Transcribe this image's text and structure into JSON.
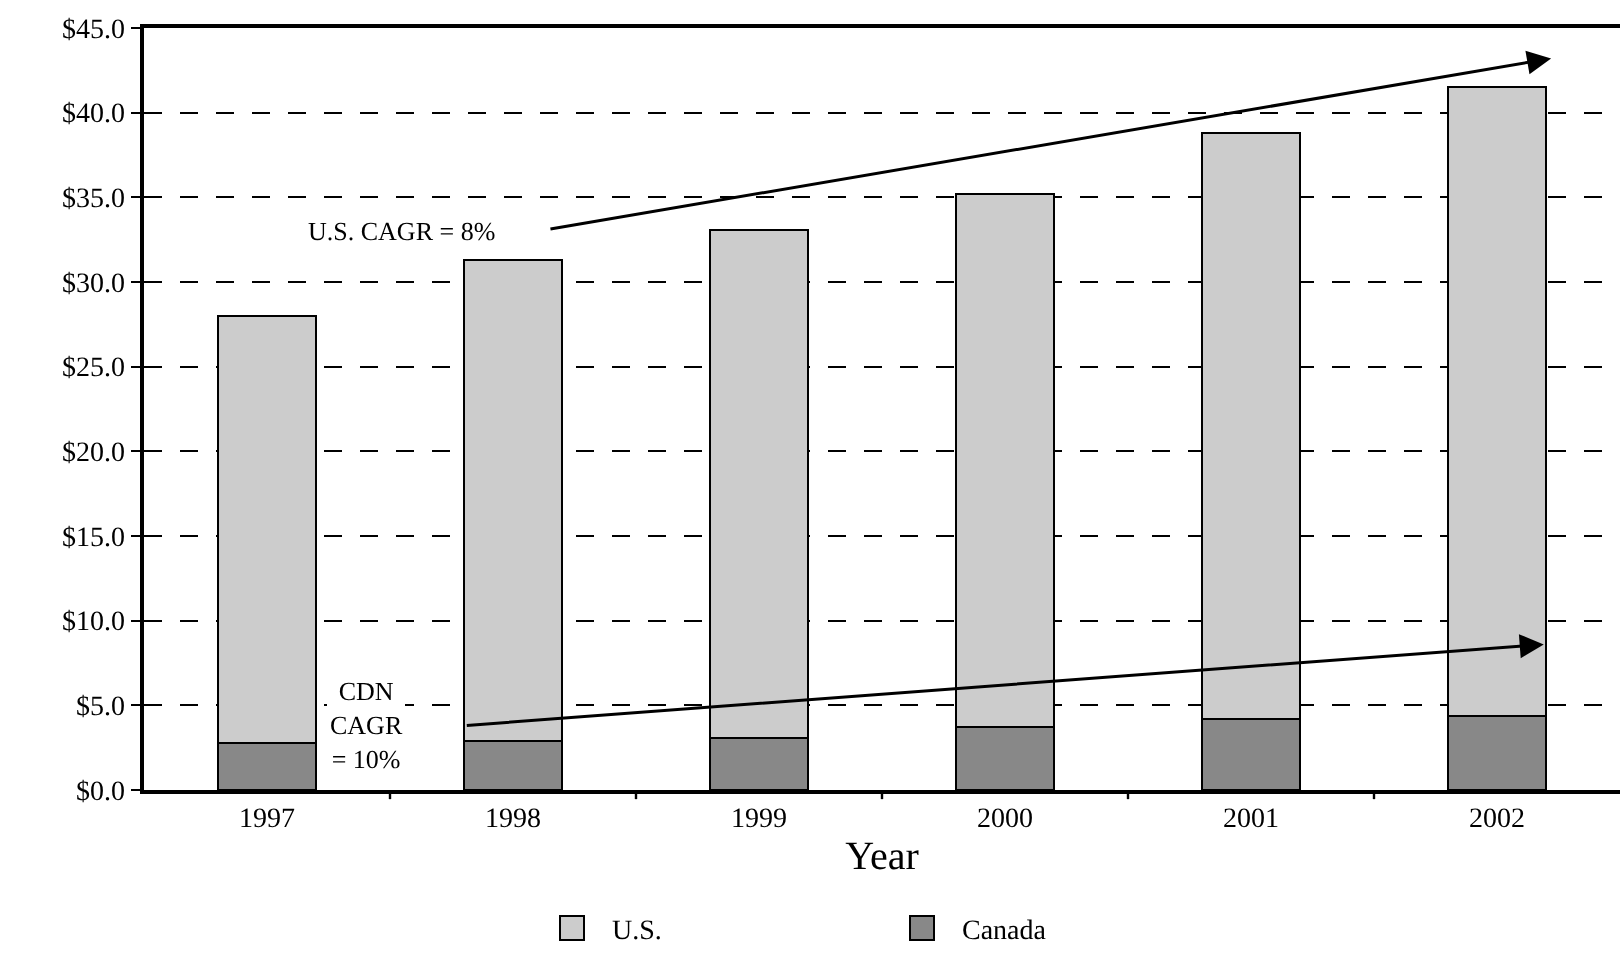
{
  "chart_data": {
    "type": "bar",
    "stacked": true,
    "xlabel": "Year",
    "categories": [
      "1997",
      "1998",
      "1999",
      "2000",
      "2001",
      "2002"
    ],
    "series": [
      {
        "name": "Canada",
        "color": "#888888",
        "values": [
          2.8,
          2.9,
          3.1,
          3.7,
          4.2,
          4.4
        ]
      },
      {
        "name": "U.S.",
        "color": "#cccccc",
        "values": [
          25.2,
          28.4,
          30.0,
          31.5,
          34.6,
          37.1
        ]
      }
    ],
    "ylim": [
      0,
      45
    ],
    "yticks": [
      {
        "value": 0,
        "label": "$0.0"
      },
      {
        "value": 5,
        "label": "$5.0"
      },
      {
        "value": 10,
        "label": "$10.0"
      },
      {
        "value": 15,
        "label": "$15.0"
      },
      {
        "value": 20,
        "label": "$20.0"
      },
      {
        "value": 25,
        "label": "$25.0"
      },
      {
        "value": 30,
        "label": "$30.0"
      },
      {
        "value": 35,
        "label": "$35.0"
      },
      {
        "value": 40,
        "label": "$40.0"
      },
      {
        "value": 45,
        "label": "$45.0"
      }
    ],
    "grid": "y",
    "legend": "bottom",
    "annotations": [
      "U.S. CAGR = 8%",
      "CDN\nCAGR\n= 10%"
    ]
  }
}
